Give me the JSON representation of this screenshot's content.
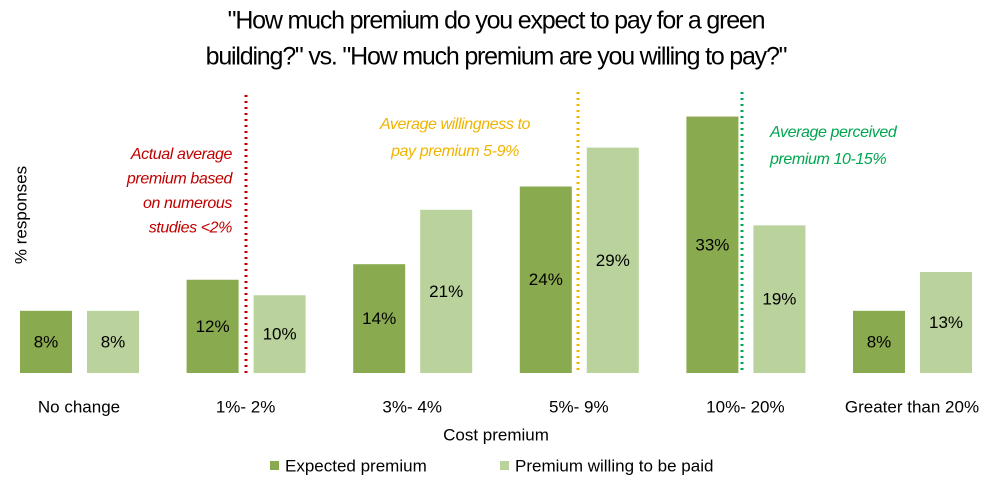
{
  "chart_data": {
    "type": "bar",
    "title": [
      "\"How much premium do you expect to pay for a green",
      "building?\" vs. \"How much premium are you willing to pay?\""
    ],
    "x_label": "Cost premium",
    "y_label": "% responses",
    "categories": [
      "No change",
      "1%- 2%",
      "3%- 4%",
      "5%- 9%",
      "10%- 20%",
      "Greater than 20%"
    ],
    "series": [
      {
        "name": "Expected premium",
        "color": "#8aaa4f",
        "values": [
          8,
          12,
          14,
          24,
          33,
          8
        ],
        "value_labels": [
          "8%",
          "12%",
          "14%",
          "24%",
          "33%",
          "8%"
        ]
      },
      {
        "name": "Premium willing to be paid",
        "color": "#bad29b",
        "values": [
          8,
          10,
          21,
          29,
          19,
          13
        ],
        "value_labels": [
          "8%",
          "10%",
          "21%",
          "29%",
          "19%",
          "13%"
        ]
      }
    ],
    "ylim": [
      0,
      35
    ],
    "annotations": [
      {
        "lines": [
          "Actual average",
          "premium based",
          "on numerous",
          "studies <2%"
        ],
        "color": "#c00000"
      },
      {
        "lines": [
          "Average willingness to",
          "pay premium 5-9%"
        ],
        "color": "#f0b400"
      },
      {
        "lines": [
          "Average perceived",
          "premium 10-15%"
        ],
        "color": "#00a651"
      }
    ]
  }
}
